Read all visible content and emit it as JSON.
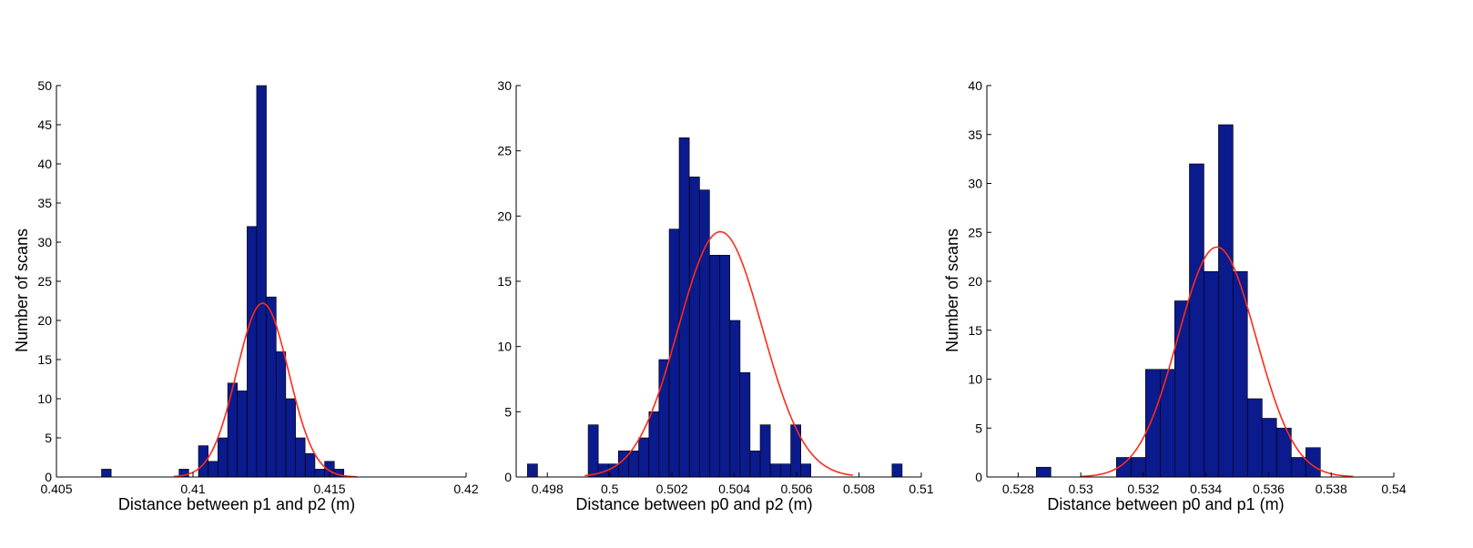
{
  "chart_data": [
    {
      "type": "bar",
      "title": "",
      "xlabel": "Distance between p1 and p2 (m)",
      "ylabel": "Number of scans",
      "xlim": [
        0.405,
        0.42
      ],
      "ylim": [
        0,
        50
      ],
      "xticks": [
        0.405,
        0.41,
        0.415,
        0.42
      ],
      "xtick_labels": [
        "0.405",
        "0.41",
        "0.415",
        "0.42"
      ],
      "yticks": [
        0,
        5,
        10,
        15,
        20,
        25,
        30,
        35,
        40,
        45,
        50
      ],
      "ytick_labels": [
        "0",
        "5",
        "10",
        "15",
        "20",
        "25",
        "30",
        "35",
        "40",
        "45",
        "50"
      ],
      "bin_width": 0.000355,
      "bin_starts": [
        0.40665,
        0.40949,
        0.4102,
        0.41056,
        0.41091,
        0.41127,
        0.41162,
        0.41198,
        0.41233,
        0.41269,
        0.41304,
        0.4134,
        0.41375,
        0.41411,
        0.41446,
        0.41482,
        0.41517
      ],
      "values": [
        1,
        1,
        4,
        2,
        5,
        12,
        11,
        32,
        50,
        23,
        16,
        10,
        5,
        3,
        1,
        2,
        1
      ],
      "fit": {
        "type": "normal",
        "mean": 0.41255,
        "sigma": 0.00095,
        "peak": 22.2,
        "range": [
          0.4093,
          0.416
        ]
      }
    },
    {
      "type": "bar",
      "title": "",
      "xlabel": "Distance between p0 and p2 (m)",
      "ylabel": "",
      "xlim": [
        0.497,
        0.51
      ],
      "ylim": [
        0,
        30
      ],
      "xticks": [
        0.498,
        0.5,
        0.502,
        0.504,
        0.506,
        0.508,
        0.51
      ],
      "xtick_labels": [
        "0.498",
        "0.5",
        "0.502",
        "0.504",
        "0.506",
        "0.508",
        "0.51"
      ],
      "yticks": [
        0,
        5,
        10,
        15,
        20,
        25,
        30
      ],
      "ytick_labels": [
        "0",
        "5",
        "10",
        "15",
        "20",
        "25",
        "30"
      ],
      "bin_width": 0.000325,
      "bin_starts": [
        0.49736,
        0.49931,
        0.49963,
        0.49996,
        0.50028,
        0.50061,
        0.50093,
        0.50126,
        0.50158,
        0.50191,
        0.50223,
        0.50256,
        0.50288,
        0.50321,
        0.50353,
        0.50386,
        0.50418,
        0.50451,
        0.50483,
        0.50516,
        0.50548,
        0.50581,
        0.50613,
        0.50906
      ],
      "values": [
        1,
        4,
        1,
        1,
        2,
        2,
        3,
        5,
        9,
        19,
        26,
        23,
        22,
        17,
        17,
        12,
        8,
        2,
        4,
        1,
        1,
        4,
        1,
        1
      ],
      "fit": {
        "type": "normal",
        "mean": 0.50355,
        "sigma": 0.00135,
        "peak": 18.8,
        "range": [
          0.4992,
          0.5078
        ]
      }
    },
    {
      "type": "bar",
      "title": "",
      "xlabel": "Distance between p0 and p1 (m)",
      "ylabel": "Number of scans",
      "xlim": [
        0.527,
        0.54
      ],
      "ylim": [
        0,
        40
      ],
      "xticks": [
        0.528,
        0.53,
        0.532,
        0.534,
        0.536,
        0.538,
        0.54
      ],
      "xtick_labels": [
        "0.528",
        "0.53",
        "0.532",
        "0.534",
        "0.536",
        "0.538",
        "0.54"
      ],
      "yticks": [
        0,
        5,
        10,
        15,
        20,
        25,
        30,
        35,
        40
      ],
      "ytick_labels": [
        "0",
        "5",
        "10",
        "15",
        "20",
        "25",
        "30",
        "35",
        "40"
      ],
      "bin_width": 0.000465,
      "bin_starts": [
        0.52858,
        0.53114,
        0.53161,
        0.53207,
        0.53254,
        0.533,
        0.53347,
        0.53393,
        0.5344,
        0.53486,
        0.53533,
        0.53579,
        0.53626,
        0.53672,
        0.53719
      ],
      "values": [
        1,
        2,
        2,
        11,
        11,
        18,
        32,
        21,
        36,
        21,
        8,
        6,
        5,
        2,
        3
      ],
      "fit": {
        "type": "normal",
        "mean": 0.53435,
        "sigma": 0.00125,
        "peak": 23.5,
        "range": [
          0.53,
          0.5387
        ]
      }
    }
  ]
}
